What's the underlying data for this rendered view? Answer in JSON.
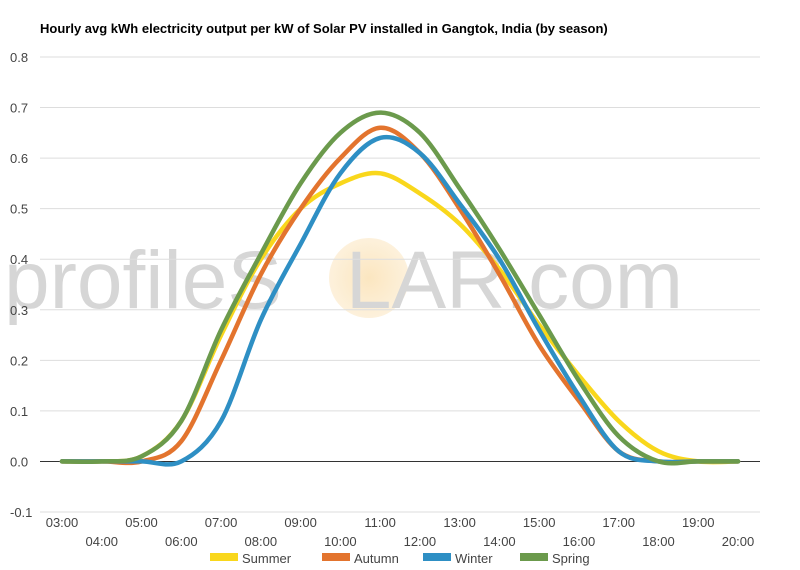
{
  "watermark": {
    "pre": "profile",
    "mid": "S",
    "orb": "O",
    "post": "LAR.com"
  },
  "chart_data": {
    "type": "line",
    "title": "Hourly avg kWh electricity output per kW of Solar PV installed in Gangtok, India (by season)",
    "xlabel": "",
    "ylabel": "",
    "ylim": [
      -0.1,
      0.8
    ],
    "yticks": [
      "-0.1",
      "0.0",
      "0.1",
      "0.2",
      "0.3",
      "0.4",
      "0.5",
      "0.6",
      "0.7",
      "0.8"
    ],
    "x": [
      "03:00",
      "04:00",
      "05:00",
      "06:00",
      "07:00",
      "08:00",
      "09:00",
      "10:00",
      "11:00",
      "12:00",
      "13:00",
      "14:00",
      "15:00",
      "16:00",
      "17:00",
      "18:00",
      "19:00",
      "20:00"
    ],
    "grid": true,
    "legend": "bottom",
    "series": [
      {
        "name": "Summer",
        "color": "#f9d71c",
        "values": [
          0.0,
          0.0,
          0.01,
          0.08,
          0.25,
          0.4,
          0.5,
          0.55,
          0.57,
          0.53,
          0.47,
          0.38,
          0.27,
          0.17,
          0.08,
          0.02,
          0.0,
          0.0
        ]
      },
      {
        "name": "Autumn",
        "color": "#e3742e",
        "values": [
          0.0,
          0.0,
          0.0,
          0.04,
          0.2,
          0.37,
          0.5,
          0.6,
          0.66,
          0.61,
          0.5,
          0.37,
          0.23,
          0.12,
          0.02,
          0.0,
          0.0,
          0.0
        ]
      },
      {
        "name": "Winter",
        "color": "#2e8fc4",
        "values": [
          0.0,
          0.0,
          0.0,
          0.0,
          0.08,
          0.28,
          0.43,
          0.57,
          0.64,
          0.61,
          0.51,
          0.4,
          0.26,
          0.13,
          0.02,
          0.0,
          0.0,
          0.0
        ]
      },
      {
        "name": "Spring",
        "color": "#6b9a4c",
        "values": [
          0.0,
          0.0,
          0.01,
          0.08,
          0.26,
          0.41,
          0.55,
          0.65,
          0.69,
          0.65,
          0.54,
          0.42,
          0.29,
          0.16,
          0.05,
          0.0,
          0.0,
          0.0
        ]
      }
    ]
  }
}
